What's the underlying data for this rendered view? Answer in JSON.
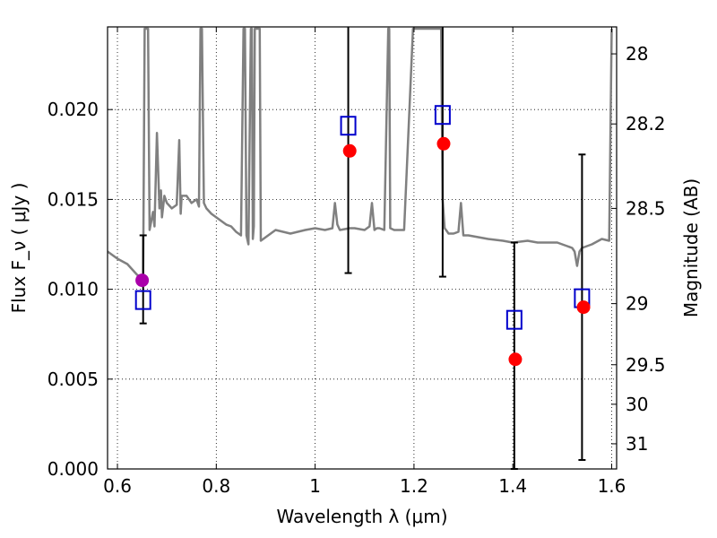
{
  "chart_data": {
    "type": "scatter",
    "xlabel": "Wavelength  λ (μm)",
    "ylabel": "Flux  F_ν  ( μJy )",
    "ylabel_right": "Magnitude (AB)",
    "xlim": [
      0.58,
      1.61
    ],
    "ylim": [
      0.0,
      0.0246
    ],
    "x_ticks": [
      "0.6",
      "0.8",
      "1",
      "1.2",
      "1.4",
      "1.6"
    ],
    "x_tick_values": [
      0.6,
      0.8,
      1.0,
      1.2,
      1.4,
      1.6
    ],
    "y_ticks": [
      "0.000",
      "0.005",
      "0.010",
      "0.015",
      "0.020"
    ],
    "y_tick_values": [
      0.0,
      0.005,
      0.01,
      0.015,
      0.02
    ],
    "right_ticks": [
      {
        "label": "28",
        "flux": 0.0231
      },
      {
        "label": "28.2",
        "flux": 0.0192
      },
      {
        "label": "28.5",
        "flux": 0.0145
      },
      {
        "label": "29",
        "flux": 0.0092
      },
      {
        "label": "29.5",
        "flux": 0.0058
      },
      {
        "label": "30",
        "flux": 0.0036
      },
      {
        "label": "31",
        "flux": 0.0014
      }
    ],
    "grid": true,
    "model_spectrum": {
      "color": "#808080",
      "x": [
        0.58,
        0.6,
        0.62,
        0.64,
        0.652,
        0.655,
        0.657,
        0.66,
        0.662,
        0.665,
        0.672,
        0.675,
        0.68,
        0.685,
        0.688,
        0.69,
        0.695,
        0.7,
        0.71,
        0.72,
        0.725,
        0.728,
        0.73,
        0.74,
        0.75,
        0.76,
        0.765,
        0.768,
        0.771,
        0.775,
        0.78,
        0.79,
        0.8,
        0.81,
        0.82,
        0.83,
        0.84,
        0.85,
        0.855,
        0.858,
        0.861,
        0.865,
        0.87,
        0.872,
        0.874,
        0.876,
        0.878,
        0.88,
        0.882,
        0.884,
        0.886,
        0.888,
        0.89,
        0.92,
        0.95,
        0.98,
        1.0,
        1.02,
        1.035,
        1.04,
        1.045,
        1.05,
        1.07,
        1.08,
        1.1,
        1.11,
        1.115,
        1.12,
        1.125,
        1.13,
        1.14,
        1.148,
        1.15,
        1.152,
        1.16,
        1.18,
        1.198,
        1.2,
        1.202,
        1.22,
        1.24,
        1.255,
        1.258,
        1.262,
        1.265,
        1.27,
        1.28,
        1.29,
        1.295,
        1.3,
        1.31,
        1.33,
        1.35,
        1.38,
        1.4,
        1.43,
        1.45,
        1.47,
        1.49,
        1.5,
        1.51,
        1.52,
        1.525,
        1.53,
        1.535,
        1.54,
        1.56,
        1.58,
        1.595,
        1.6
      ],
      "y": [
        0.0121,
        0.0117,
        0.0114,
        0.0108,
        0.0106,
        0.0245,
        0.0245,
        0.0245,
        0.0245,
        0.0133,
        0.0143,
        0.0135,
        0.0187,
        0.0145,
        0.0155,
        0.014,
        0.0152,
        0.0148,
        0.0145,
        0.0147,
        0.0183,
        0.0142,
        0.0152,
        0.0152,
        0.0148,
        0.015,
        0.0146,
        0.0245,
        0.0245,
        0.0148,
        0.0145,
        0.0142,
        0.014,
        0.0138,
        0.0136,
        0.0135,
        0.0132,
        0.013,
        0.0245,
        0.0245,
        0.013,
        0.0125,
        0.0245,
        0.0245,
        0.0128,
        0.0135,
        0.0245,
        0.0245,
        0.0245,
        0.0245,
        0.0245,
        0.0245,
        0.0127,
        0.0133,
        0.0131,
        0.0133,
        0.0134,
        0.0133,
        0.0134,
        0.0148,
        0.0136,
        0.0133,
        0.0134,
        0.0134,
        0.0133,
        0.0135,
        0.0148,
        0.0133,
        0.0134,
        0.0134,
        0.0133,
        0.0245,
        0.0245,
        0.0134,
        0.0133,
        0.0133,
        0.0245,
        0.0245,
        0.0245,
        0.0245,
        0.0245,
        0.0245,
        0.015,
        0.0134,
        0.0133,
        0.0131,
        0.0131,
        0.0132,
        0.0148,
        0.013,
        0.013,
        0.0129,
        0.0128,
        0.0127,
        0.0126,
        0.0127,
        0.0126,
        0.0126,
        0.0126,
        0.0125,
        0.0124,
        0.0123,
        0.0121,
        0.0113,
        0.0121,
        0.0123,
        0.0125,
        0.0128,
        0.0127,
        0.0245
      ]
    },
    "series": [
      {
        "marker": "square-open",
        "color": "#0000cc",
        "x": [
          0.652,
          1.067,
          1.258,
          1.403,
          1.54
        ],
        "y": [
          0.0094,
          0.0191,
          0.0197,
          0.0083,
          0.0095
        ]
      },
      {
        "marker": "circle",
        "color": "#ff0000",
        "x": [
          1.07,
          1.26,
          1.405,
          1.543
        ],
        "y": [
          0.0177,
          0.0181,
          0.0061,
          0.009
        ]
      },
      {
        "marker": "circle",
        "color": "#aa00aa",
        "x": [
          0.65
        ],
        "y": [
          0.0105
        ]
      }
    ],
    "error_bars": [
      {
        "x": 0.652,
        "low": 0.0081,
        "high": 0.013
      },
      {
        "x": 1.067,
        "low": 0.0109,
        "high": 0.0246
      },
      {
        "x": 1.258,
        "low": 0.0107,
        "high": 0.0246
      },
      {
        "x": 1.403,
        "low": 0.0,
        "high": 0.0126
      },
      {
        "x": 1.54,
        "low": 0.0005,
        "high": 0.0175
      }
    ]
  }
}
